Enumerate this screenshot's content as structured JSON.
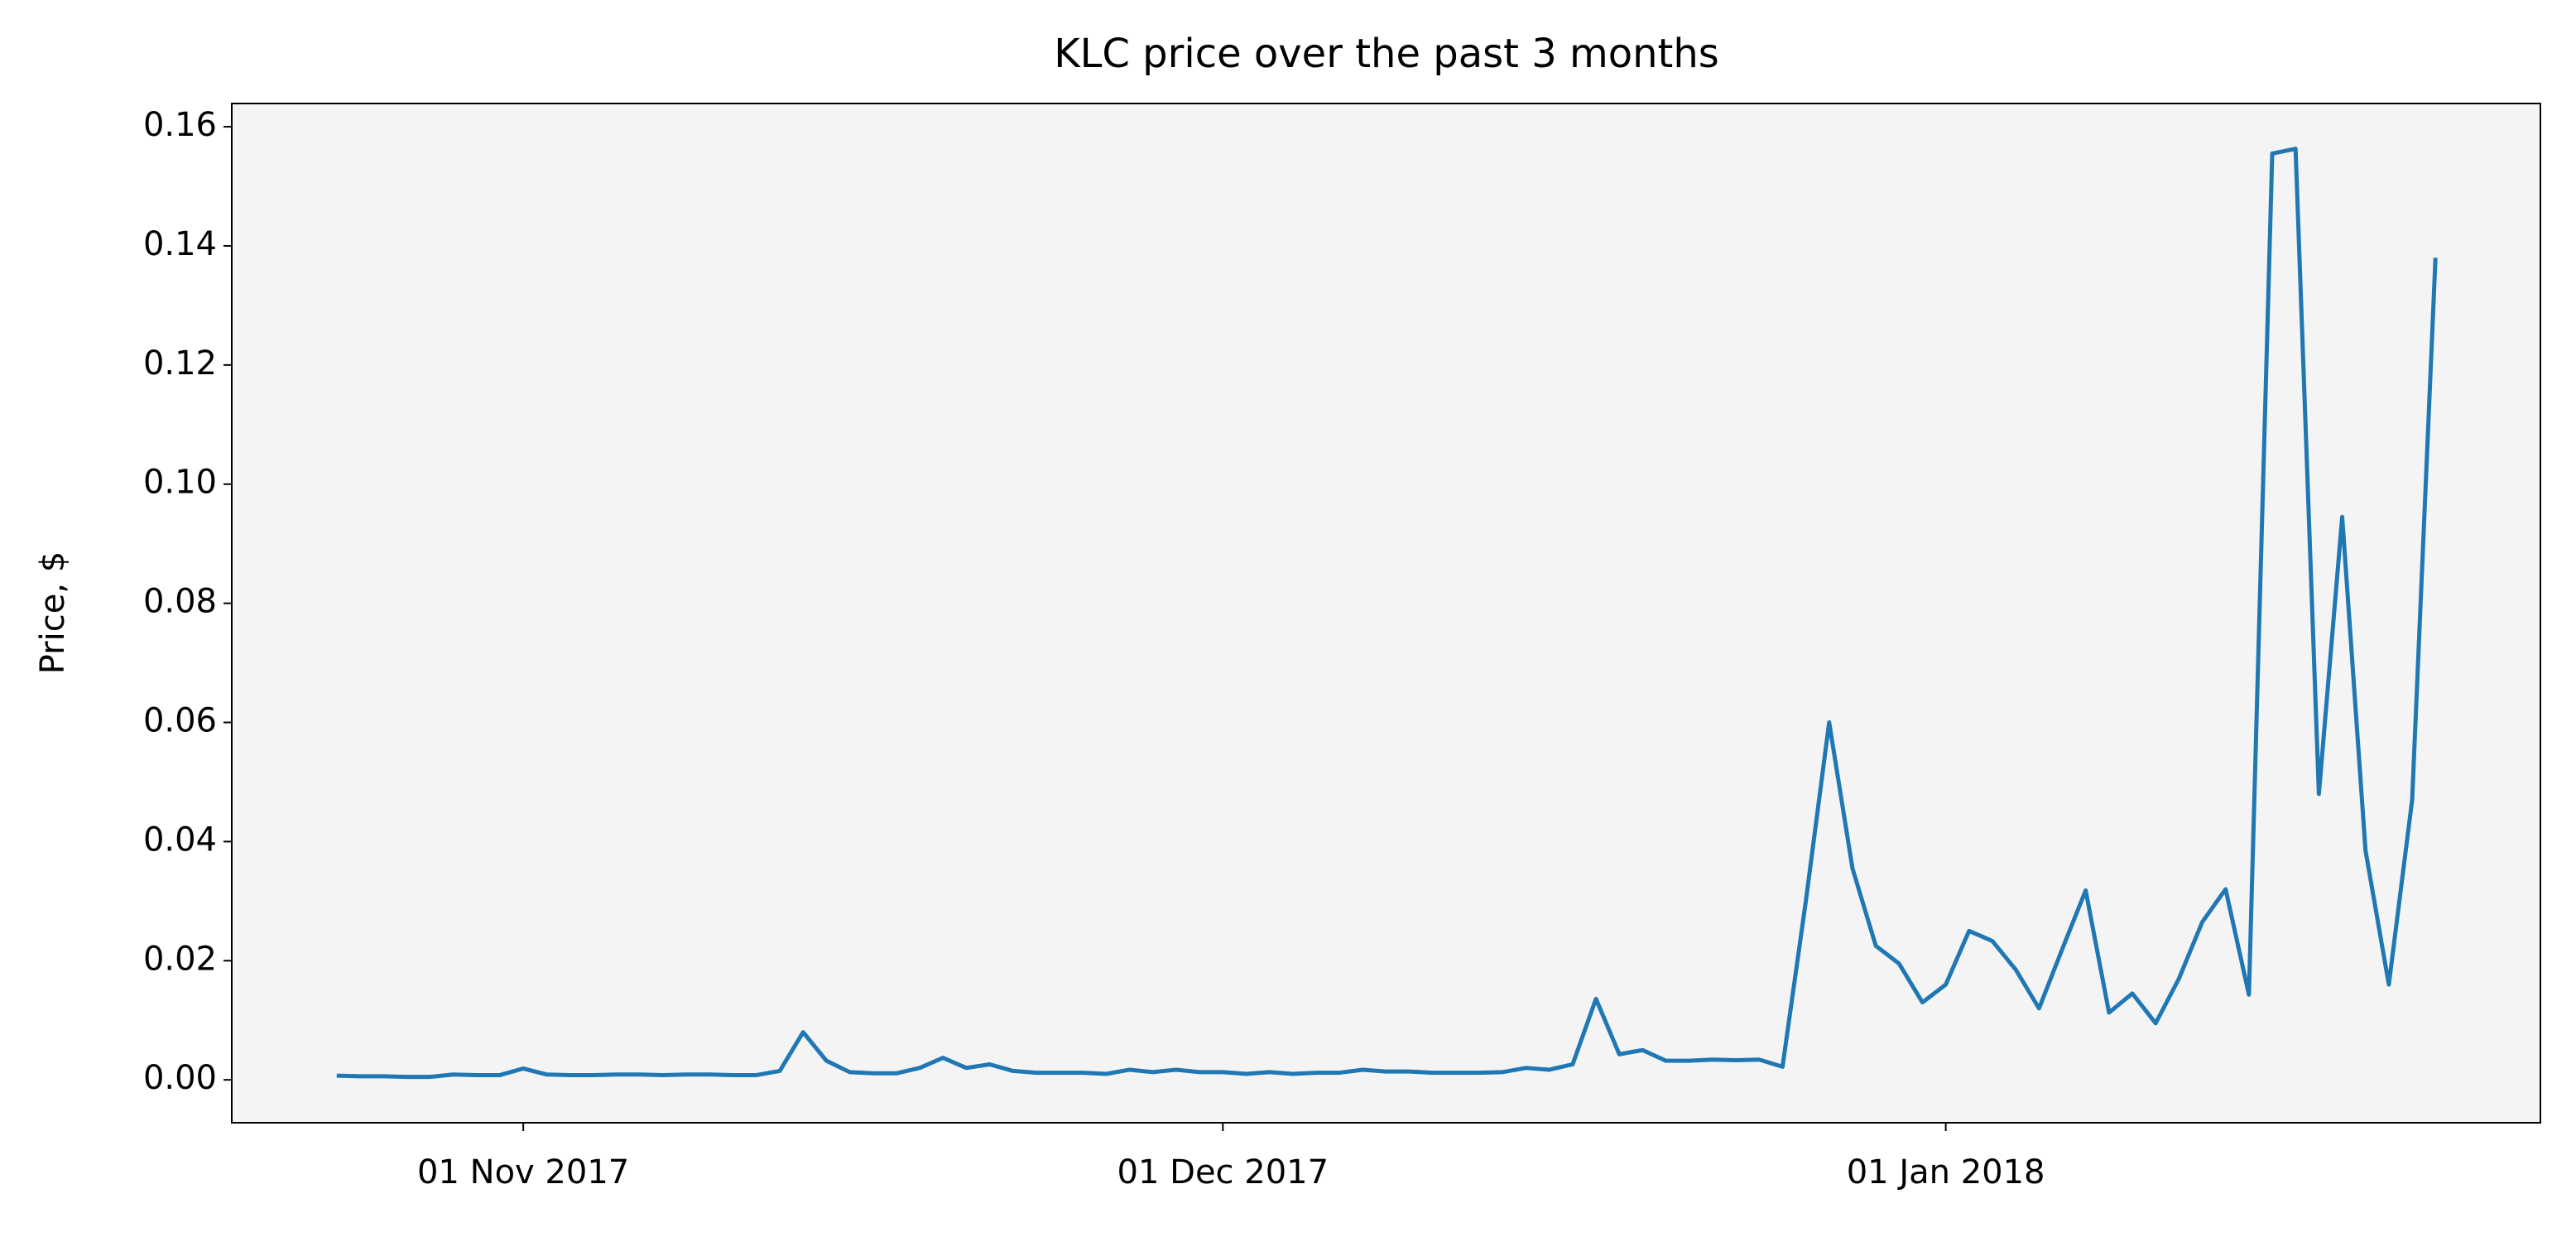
{
  "chart_data": {
    "type": "line",
    "title": "KLC price over the past 3 months",
    "y_label": "Price, $",
    "x": [
      "2017-10-24",
      "2017-10-25",
      "2017-10-26",
      "2017-10-27",
      "2017-10-28",
      "2017-10-29",
      "2017-10-30",
      "2017-10-31",
      "2017-11-01",
      "2017-11-02",
      "2017-11-03",
      "2017-11-04",
      "2017-11-05",
      "2017-11-06",
      "2017-11-07",
      "2017-11-08",
      "2017-11-09",
      "2017-11-10",
      "2017-11-11",
      "2017-11-12",
      "2017-11-13",
      "2017-11-14",
      "2017-11-15",
      "2017-11-16",
      "2017-11-17",
      "2017-11-18",
      "2017-11-19",
      "2017-11-20",
      "2017-11-21",
      "2017-11-22",
      "2017-11-23",
      "2017-11-24",
      "2017-11-25",
      "2017-11-26",
      "2017-11-27",
      "2017-11-28",
      "2017-11-29",
      "2017-11-30",
      "2017-12-01",
      "2017-12-02",
      "2017-12-03",
      "2017-12-04",
      "2017-12-05",
      "2017-12-06",
      "2017-12-07",
      "2017-12-08",
      "2017-12-09",
      "2017-12-10",
      "2017-12-11",
      "2017-12-12",
      "2017-12-13",
      "2017-12-14",
      "2017-12-15",
      "2017-12-16",
      "2017-12-17",
      "2017-12-18",
      "2017-12-19",
      "2017-12-20",
      "2017-12-21",
      "2017-12-22",
      "2017-12-23",
      "2017-12-24",
      "2017-12-25",
      "2017-12-26",
      "2017-12-27",
      "2017-12-28",
      "2017-12-29",
      "2017-12-30",
      "2017-12-31",
      "2018-01-01",
      "2018-01-02",
      "2018-01-03",
      "2018-01-04",
      "2018-01-05",
      "2018-01-06",
      "2018-01-07",
      "2018-01-08",
      "2018-01-09",
      "2018-01-10",
      "2018-01-11",
      "2018-01-12",
      "2018-01-13",
      "2018-01-14",
      "2018-01-15",
      "2018-01-16",
      "2018-01-17",
      "2018-01-18",
      "2018-01-19",
      "2018-01-20",
      "2018-01-21",
      "2018-01-22"
    ],
    "series": [
      {
        "color": "#1f77b4",
        "values": [
          0.0007,
          0.0006,
          0.0006,
          0.0005,
          0.0005,
          0.0009,
          0.0008,
          0.0008,
          0.0019,
          0.0009,
          0.0008,
          0.0008,
          0.0009,
          0.0009,
          0.0008,
          0.0009,
          0.0009,
          0.0008,
          0.0008,
          0.0015,
          0.008,
          0.0032,
          0.0013,
          0.0011,
          0.0011,
          0.002,
          0.0037,
          0.002,
          0.0026,
          0.0015,
          0.0012,
          0.0012,
          0.0012,
          0.001,
          0.0017,
          0.0013,
          0.0017,
          0.0013,
          0.0013,
          0.001,
          0.0013,
          0.001,
          0.0012,
          0.0012,
          0.0017,
          0.0014,
          0.0014,
          0.0012,
          0.0012,
          0.0012,
          0.0013,
          0.002,
          0.0017,
          0.0026,
          0.0136,
          0.0043,
          0.005,
          0.0032,
          0.0032,
          0.0034,
          0.0033,
          0.0034,
          0.0022,
          0.03,
          0.06,
          0.0355,
          0.0225,
          0.0195,
          0.013,
          0.016,
          0.025,
          0.0233,
          0.0185,
          0.012,
          0.022,
          0.0318,
          0.0113,
          0.0145,
          0.0095,
          0.017,
          0.0265,
          0.032,
          0.0143,
          0.1555,
          0.1563,
          0.048,
          0.0945,
          0.0385,
          0.016,
          0.047,
          0.138
        ]
      }
    ],
    "xlim": [
      "2017-10-19T12:00",
      "2018-01-26T12:00"
    ],
    "xticks": [
      {
        "value": "2017-11-01",
        "label": "01 Nov 2017"
      },
      {
        "value": "2017-12-01",
        "label": "01 Dec 2017"
      },
      {
        "value": "2018-01-01",
        "label": "01 Jan 2018"
      }
    ],
    "ylim": [
      -0.0072,
      0.1639
    ],
    "yticks": [
      {
        "value": 0,
        "label": "0.00"
      },
      {
        "value": 0.02,
        "label": "0.02"
      },
      {
        "value": 0.04,
        "label": "0.04"
      },
      {
        "value": 0.06,
        "label": "0.06"
      },
      {
        "value": 0.08,
        "label": "0.08"
      },
      {
        "value": 0.1,
        "label": "0.10"
      },
      {
        "value": 0.12,
        "label": "0.12"
      },
      {
        "value": 0.14,
        "label": "0.14"
      },
      {
        "value": 0.16,
        "label": "0.16"
      }
    ],
    "background": "#f4f4f4"
  }
}
